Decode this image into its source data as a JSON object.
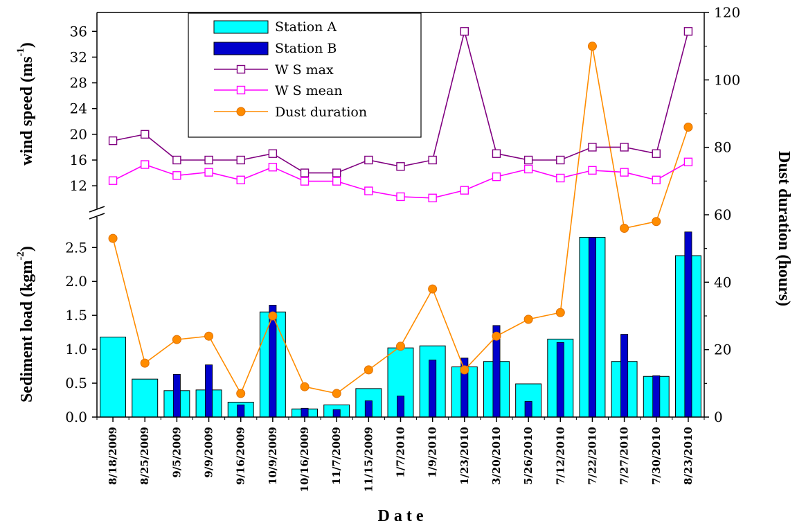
{
  "chart_data": {
    "type": "bar",
    "title": "",
    "xlabel": "D a t e",
    "ylabel_top": "wind speed (ms",
    "ylabel_top_sup": "-1",
    "ylabel_top_close": ")",
    "ylabel_bottom": "Sediment load (kgm",
    "ylabel_bottom_sup": "-2",
    "ylabel_bottom_close": ")",
    "ylabel_right": "Dust duration (hours)",
    "categories": [
      "8/18/2009",
      "8/25/2009",
      "9/5/2009",
      "9/9/2009",
      "9/16/2009",
      "10/9/2009",
      "10/16/2009",
      "11/7/2009",
      "11/15/2009",
      "1/7/2010",
      "1/9/2010",
      "1/23/2010",
      "3/20/2010",
      "5/26/2010",
      "7/12/2010",
      "7/22/2010",
      "7/27/2010",
      "7/30/2010",
      "8/23/2010"
    ],
    "series": [
      {
        "name": "Station A",
        "kind": "bar",
        "axis": "sediment",
        "color": "#00FFFF",
        "values": [
          1.18,
          0.56,
          0.39,
          0.4,
          0.22,
          1.55,
          0.12,
          0.18,
          0.42,
          1.02,
          1.05,
          0.74,
          0.82,
          0.49,
          1.15,
          2.65,
          0.82,
          0.6,
          2.38
        ]
      },
      {
        "name": "Station B",
        "kind": "bar",
        "axis": "sediment",
        "color": "#0000CC",
        "values": [
          null,
          null,
          0.63,
          0.77,
          0.18,
          1.65,
          0.13,
          0.11,
          0.24,
          0.31,
          0.84,
          0.87,
          1.35,
          0.23,
          1.1,
          2.65,
          1.22,
          0.61,
          2.73
        ]
      },
      {
        "name": "W S max",
        "kind": "line",
        "axis": "wind",
        "color": "#800080",
        "values": [
          19,
          20,
          16,
          16,
          16,
          17,
          14,
          14,
          16,
          15,
          16,
          36,
          17,
          16,
          16,
          18,
          18,
          17,
          36
        ]
      },
      {
        "name": "W S mean",
        "kind": "line",
        "axis": "wind",
        "color": "#FF00FF",
        "values": [
          12.8,
          15.3,
          13.6,
          14.1,
          12.9,
          14.9,
          12.7,
          12.7,
          11.2,
          10.3,
          10.1,
          11.3,
          13.4,
          14.6,
          13.2,
          14.4,
          14.1,
          12.9,
          15.7
        ]
      },
      {
        "name": "Dust duration",
        "kind": "line",
        "axis": "dust",
        "color": "#FF8C00",
        "values": [
          53,
          16,
          23,
          24,
          7,
          30,
          9,
          7,
          14,
          21,
          38,
          14,
          24,
          29,
          31,
          110,
          56,
          58,
          86
        ]
      }
    ],
    "axes": {
      "wind": {
        "min": 9,
        "max": 37,
        "ticks": [
          "12",
          "16",
          "20",
          "24",
          "28",
          "32",
          "36"
        ]
      },
      "sediment": {
        "min": 0,
        "max": 2.85,
        "ticks": [
          "0.0",
          "0.5",
          "1.0",
          "1.5",
          "2.0",
          "2.5"
        ]
      },
      "dust": {
        "min": 0,
        "max": 120,
        "ticks": [
          "0",
          "20",
          "40",
          "60",
          "80",
          "100",
          "120"
        ]
      }
    },
    "legend_position": "top-left",
    "grid": false
  }
}
